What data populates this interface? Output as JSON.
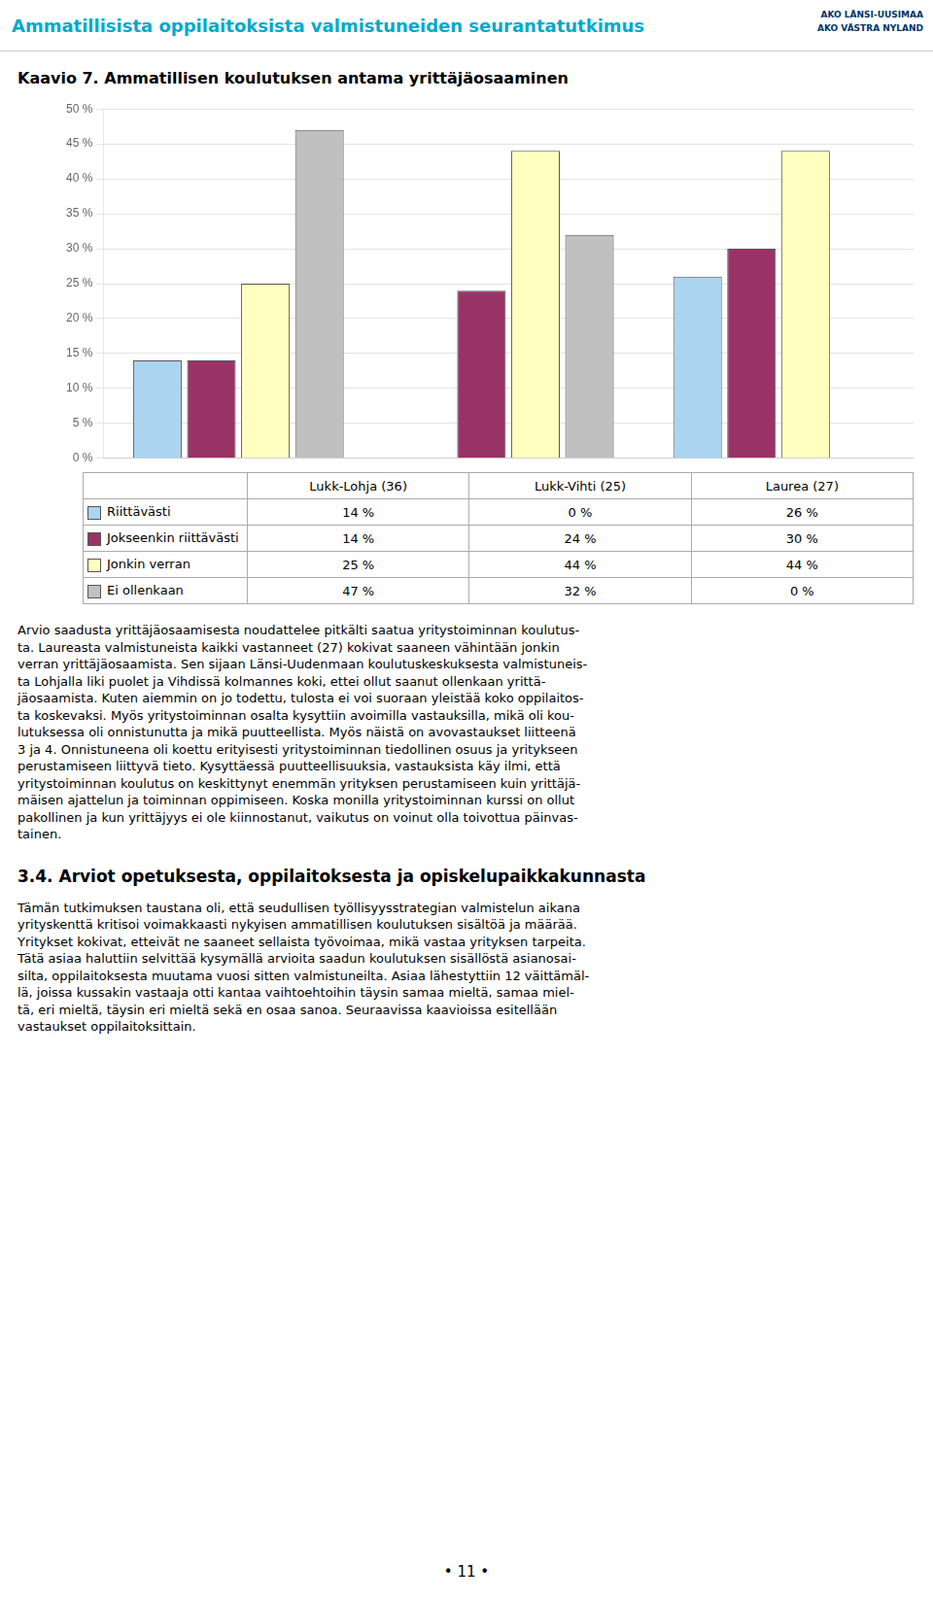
{
  "title_main": "Ammatillisista oppilaitoksista valmistuneiden seurantatutkimus",
  "logo": [
    "AKO LÄNSI-UUSIMAA",
    "AKO VÄSTRA NYLAND"
  ],
  "chart_data": {
    "type": "bar",
    "title": "Kaavio 7.   Ammatillisen koulutuksen antama yrittäjäosaaminen",
    "categories": [
      "Lukk-Lohja (36)",
      "Lukk-Vihti (25)",
      "Laurea (27)"
    ],
    "series": [
      {
        "name": "Riittävästi",
        "color": "#aad4f0",
        "values": [
          14,
          0,
          26
        ],
        "value_labels": [
          "14 %",
          "0 %",
          "26 %"
        ]
      },
      {
        "name": "Jokseenkin riittävästi",
        "color": "#993366",
        "values": [
          14,
          24,
          30
        ],
        "value_labels": [
          "14 %",
          "24 %",
          "30 %"
        ]
      },
      {
        "name": "Jonkin verran",
        "color": "#ffffc0",
        "values": [
          25,
          44,
          44
        ],
        "value_labels": [
          "25 %",
          "44 %",
          "44 %"
        ]
      },
      {
        "name": "Ei ollenkaan",
        "color": "#c0c0c0",
        "values": [
          47,
          32,
          0
        ],
        "value_labels": [
          "47 %",
          "32 %",
          "0 %"
        ]
      }
    ],
    "ylim": [
      0,
      50
    ],
    "yticks": [
      {
        "value": 0,
        "label": "0 %"
      },
      {
        "value": 5,
        "label": "5 %"
      },
      {
        "value": 10,
        "label": "10 %"
      },
      {
        "value": 15,
        "label": "15 %"
      },
      {
        "value": 20,
        "label": "20 %"
      },
      {
        "value": 25,
        "label": "25 %"
      },
      {
        "value": 30,
        "label": "30 %"
      },
      {
        "value": 35,
        "label": "35 %"
      },
      {
        "value": 40,
        "label": "40 %"
      },
      {
        "value": 45,
        "label": "45 %"
      },
      {
        "value": 50,
        "label": "50 %"
      }
    ],
    "grid": true,
    "tick_labels": "y"
  },
  "body_text": [
    "Arvio saadusta yrittäjäosaamisesta noudattelee pitkälti saatua yritystoiminnan koulutus-",
    "ta. Laureasta valmistuneista kaikki vastanneet (27) kokivat saaneen vähintään jonkin",
    "verran yrittäjäosaamista. Sen sijaan Länsi-Uudenmaan koulutuskeskuksesta valmistuneis-",
    "ta Lohjalla liki puolet ja Vihdissä kolmannes koki, ettei ollut saanut ollenkaan yrittä-",
    "jäosaamista. Kuten aiemmin on jo todettu, tulosta ei voi suoraan yleistää koko oppilaitos-",
    "ta koskevaksi.  Myös yritystoiminnan osalta kysyttiin avoimilla vastauksilla, mikä oli kou-",
    "lutuksessa oli onnistunutta ja mikä puutteellista. Myös näistä on avovastaukset liitteenä",
    "3 ja 4. Onnistuneena oli koettu erityisesti yritystoiminnan tiedollinen osuus ja yritykseen",
    "perustamiseen liittyvä tieto.  Kysyttäessä puutteellisuuksia, vastauksista käy ilmi, että",
    "yritystoiminnan koulutus on keskittynyt enemmän yrityksen perustamiseen kuin yrittäjä-",
    "mäisen ajattelun ja toiminnan oppimiseen. Koska monilla yritystoiminnan kurssi on ollut",
    "pakollinen ja kun yrittäjyys ei ole kiinnostanut, vaikutus on voinut olla toivottua päinvas-",
    "tainen."
  ],
  "section_title": "3.4.   Arviot opetuksesta, oppilaitoksesta ja opiskelupaikkakunnasta",
  "body_text2": [
    "Tämän tutkimuksen taustana oli, että seudullisen työllisyysstrategian valmistelun aikana",
    "yrityskenttä kritisoi voimakkaasti nykyisen ammatillisen koulutuksen sisältöä ja määrää.",
    "Yritykset kokivat, etteivät ne saaneet sellaista työvoimaa, mikä vastaa yrityksen tarpeita.",
    "Tätä asiaa haluttiin selvittää kysymällä arvioita saadun koulutuksen sisällöstä asianosai-",
    "silta, oppilaitoksesta muutama vuosi sitten valmistuneilta. Asiaa lähestyttiin 12 väittämäl-",
    "lä, joissa kussakin vastaaja otti kantaa vaihtoehtoihin täysin samaa mieltä, samaa miel-",
    "tä, eri mieltä, täysin eri mieltä sekä en osaa sanoa. Seuraavissa kaavioissa esitellään",
    "vastaukset oppilaitoksittain."
  ],
  "page_number": "• 11 •"
}
